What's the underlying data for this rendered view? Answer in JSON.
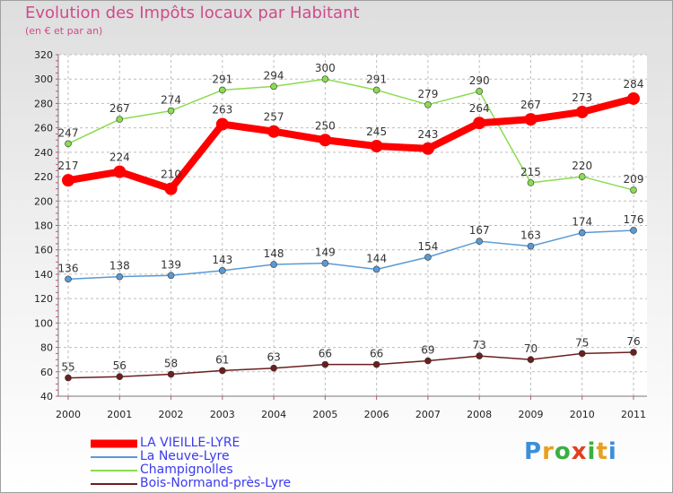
{
  "title": "Evolution des Impôts locaux par Habitant",
  "subtitle": "(en € et par an)",
  "brand": {
    "letters": [
      "P",
      "r",
      "o",
      "x",
      "i",
      "t",
      "i"
    ],
    "colors": [
      "#3b8fd8",
      "#e8a020",
      "#3ab040",
      "#e04020",
      "#3ab040",
      "#e8a020",
      "#3b8fd8"
    ]
  },
  "chart_data": {
    "type": "line",
    "x": [
      "2000",
      "2001",
      "2002",
      "2003",
      "2004",
      "2005",
      "2006",
      "2007",
      "2008",
      "2009",
      "2010",
      "2011"
    ],
    "ylim": [
      40,
      320
    ],
    "yticks": [
      40,
      60,
      80,
      100,
      120,
      140,
      160,
      180,
      200,
      220,
      240,
      260,
      280,
      300,
      320
    ],
    "grid": true,
    "legend_position": "bottom-left",
    "series": [
      {
        "name": "LA VIEILLE-LYRE",
        "color": "#ff0000",
        "values": [
          217,
          224,
          210,
          263,
          257,
          250,
          245,
          243,
          264,
          267,
          273,
          284
        ]
      },
      {
        "name": "La Neuve-Lyre",
        "color": "#5a9ad4",
        "values": [
          136,
          138,
          139,
          143,
          148,
          149,
          144,
          154,
          167,
          163,
          174,
          176
        ]
      },
      {
        "name": "Champignolles",
        "color": "#8adc50",
        "values": [
          247,
          267,
          274,
          291,
          294,
          300,
          291,
          279,
          290,
          215,
          220,
          209
        ]
      },
      {
        "name": "Bois-Normand-près-Lyre",
        "color": "#6b1f1f",
        "values": [
          55,
          56,
          58,
          61,
          63,
          66,
          66,
          69,
          73,
          70,
          75,
          76
        ]
      }
    ]
  }
}
